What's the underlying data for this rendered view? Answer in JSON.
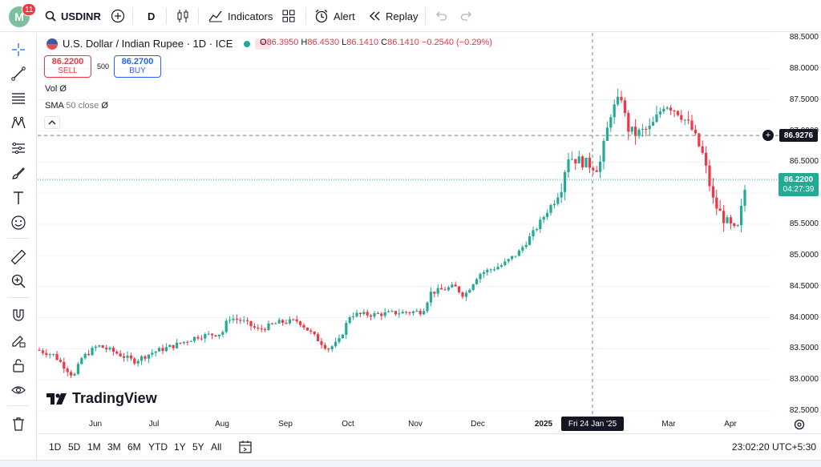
{
  "topbar": {
    "avatar_letter": "M",
    "notification_count": "11",
    "symbol": "USDINR",
    "interval": "D",
    "indicators_label": "Indicators",
    "alert_label": "Alert",
    "replay_label": "Replay"
  },
  "legend": {
    "title": "U.S. Dollar / Indian Rupee · 1D · ICE",
    "open_key": "O",
    "open": "86.3950",
    "high_key": "H",
    "high": "86.4530",
    "low_key": "L",
    "low": "86.1410",
    "close_key": "C",
    "close": "86.1410",
    "change": "−0.2540 (−0.29%)",
    "market_pill": "≈"
  },
  "trade": {
    "sell_price": "86.2200",
    "sell_label": "SELL",
    "buy_price": "86.2700",
    "buy_label": "BUY",
    "quantity": "500"
  },
  "indicators": {
    "vol_label": "Vol",
    "vol_eye": "Ø",
    "sma_label": "SMA",
    "sma_params": "50 close",
    "sma_eye": "Ø"
  },
  "price_axis": {
    "ticks": [
      "88.5000",
      "88.0000",
      "87.5000",
      "87.0000",
      "86.5000",
      "86.0000",
      "85.5000",
      "85.0000",
      "84.5000",
      "84.0000",
      "83.5000",
      "83.0000",
      "82.5000"
    ],
    "crosshair_price": "86.9276",
    "current_price": "86.2200",
    "countdown": "04:27:39"
  },
  "time_axis": {
    "labels": [
      "Jun",
      "Jul",
      "Aug",
      "Sep",
      "Oct",
      "Nov",
      "Dec",
      "2025",
      "Mar",
      "Apr"
    ],
    "bold_label": "2025",
    "crosshair_date": "Fri 24 Jan '25"
  },
  "brand": {
    "logo_text": "TradingView"
  },
  "bottombar": {
    "ranges": [
      "1D",
      "5D",
      "1M",
      "3M",
      "6M",
      "YTD",
      "1Y",
      "5Y",
      "All"
    ],
    "clock": "23:02:20 UTC+5:30"
  },
  "colors": {
    "up": "#22ab94",
    "down": "#f23645",
    "crosshair": "#787b86",
    "grid": "#f0f3fa"
  },
  "chart_data": {
    "type": "candlestick",
    "symbol": "USDINR",
    "interval": "1D",
    "ylim": [
      82.5,
      88.5
    ],
    "x_labels": [
      "Jun",
      "Jul",
      "Aug",
      "Sep",
      "Oct",
      "Nov",
      "Dec",
      "2025",
      "Mar",
      "Apr"
    ],
    "approx_closes_by_month_start": [
      {
        "label": "Jun",
        "close": 83.35
      },
      {
        "label": "Jul",
        "close": 83.5
      },
      {
        "label": "Aug",
        "close": 83.75
      },
      {
        "label": "Sep",
        "close": 83.9
      },
      {
        "label": "Oct",
        "close": 83.95
      },
      {
        "label": "Nov",
        "close": 84.1
      },
      {
        "label": "Dec",
        "close": 84.7
      },
      {
        "label": "2025",
        "close": 85.8
      },
      {
        "label": "Mar",
        "close": 87.1
      },
      {
        "label": "Apr",
        "close": 85.5
      }
    ],
    "last_close": 86.22,
    "crosshair_price": 86.9276
  }
}
